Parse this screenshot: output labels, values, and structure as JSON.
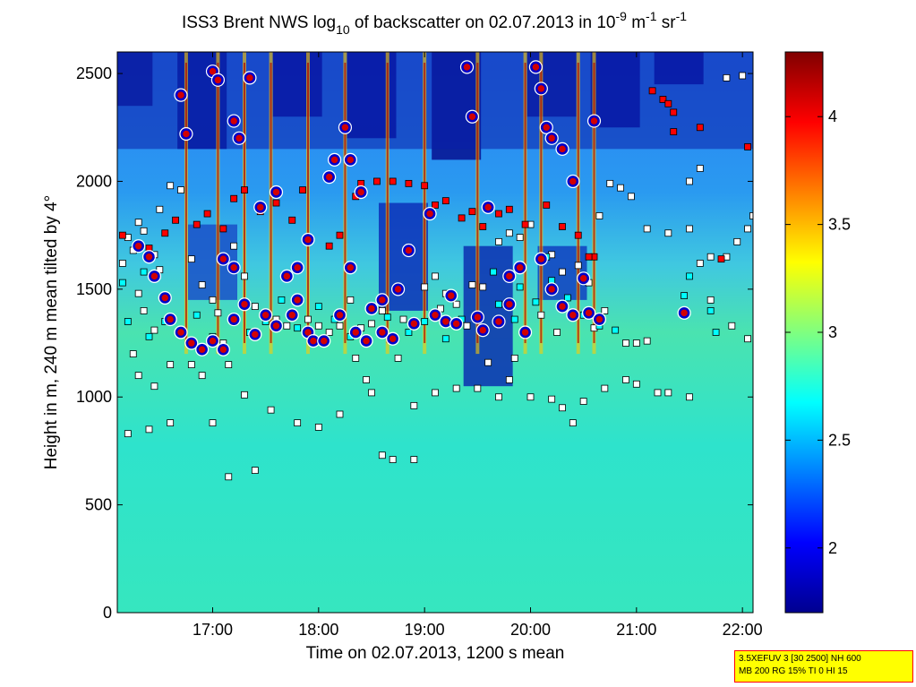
{
  "title": {
    "prefix": "ISS3 Brent NWS log",
    "sub": "10",
    "middle": " of backscatter on 02.07.2013 in 10",
    "sup1": "-9",
    "unit1": " m",
    "sup2": "-1",
    "unit2": " sr",
    "sup3": "-1"
  },
  "xlabel": "Time on 02.07.2013, 1200 s mean",
  "ylabel": "Height in m, 240 m mean tilted by 4°",
  "info_box": {
    "line1": "3.5XEFUV 3 [30 2500] NH 600",
    "line2": "MB 200 RG 15% TI 0 HI 15"
  },
  "colors": {
    "background_low": "#2fe3c8",
    "background_mid": "#33c4e6",
    "high_backscatter": "#8c0000",
    "cloud_marker_fill": "#ff0000",
    "cloud_marker_edge": "#000000",
    "layer_marker_fill": "#ffffff",
    "aerosol_marker_fill": "#00ffff",
    "precip_marker_fill": "#d20000",
    "precip_marker_edge": "#0000cc",
    "info_box_bg": "#ffff00",
    "info_box_border": "#ff0000"
  },
  "chart_data": {
    "type": "heatmap",
    "colormap": "jet",
    "x_range_hours": [
      16.1,
      22.1
    ],
    "y_range_m": [
      0,
      2600
    ],
    "x_ticks": [
      "17:00",
      "18:00",
      "19:00",
      "20:00",
      "21:00",
      "22:00"
    ],
    "x_tick_hours": [
      17,
      18,
      19,
      20,
      21,
      22
    ],
    "y_ticks": [
      0,
      500,
      1000,
      1500,
      2000,
      2500
    ],
    "colorbar": {
      "range": [
        1.7,
        4.3
      ],
      "ticks": [
        "2",
        "2.5",
        "3",
        "3.5",
        "4"
      ],
      "tick_values": [
        2,
        2.5,
        3,
        3.5,
        4
      ]
    },
    "grid": false,
    "series": [
      {
        "marker": "square-white",
        "points": [
          [
            16.15,
            1620
          ],
          [
            16.2,
            1740
          ],
          [
            16.25,
            1680
          ],
          [
            16.3,
            1810
          ],
          [
            16.35,
            1770
          ],
          [
            16.45,
            1660
          ],
          [
            16.5,
            1590
          ],
          [
            16.6,
            1980
          ],
          [
            16.7,
            1960
          ],
          [
            16.8,
            1640
          ],
          [
            16.9,
            1520
          ],
          [
            17.0,
            1450
          ],
          [
            17.05,
            1390
          ],
          [
            17.1,
            1250
          ],
          [
            17.2,
            1700
          ],
          [
            17.3,
            1560
          ],
          [
            17.4,
            1420
          ],
          [
            17.5,
            1380
          ],
          [
            17.6,
            1360
          ],
          [
            17.7,
            1330
          ],
          [
            17.9,
            1360
          ],
          [
            18.0,
            1330
          ],
          [
            18.2,
            1330
          ],
          [
            18.3,
            1450
          ],
          [
            18.4,
            1320
          ],
          [
            18.5,
            1340
          ],
          [
            18.6,
            1400
          ],
          [
            18.8,
            1360
          ],
          [
            19.0,
            1510
          ],
          [
            19.1,
            1560
          ],
          [
            19.2,
            1480
          ],
          [
            19.3,
            1430
          ],
          [
            19.45,
            1520
          ],
          [
            19.55,
            1510
          ],
          [
            19.7,
            1720
          ],
          [
            19.8,
            1760
          ],
          [
            19.9,
            1740
          ],
          [
            20.0,
            1800
          ],
          [
            20.2,
            1660
          ],
          [
            20.3,
            1580
          ],
          [
            20.45,
            1610
          ],
          [
            20.55,
            1530
          ],
          [
            20.65,
            1840
          ],
          [
            20.75,
            1990
          ],
          [
            20.85,
            1970
          ],
          [
            20.95,
            1930
          ],
          [
            21.1,
            1780
          ],
          [
            21.3,
            1760
          ],
          [
            21.5,
            1780
          ],
          [
            21.6,
            1620
          ],
          [
            21.7,
            1650
          ],
          [
            21.85,
            1650
          ],
          [
            21.95,
            1720
          ],
          [
            22.05,
            1780
          ],
          [
            22.1,
            1840
          ],
          [
            20.7,
            1400
          ],
          [
            20.9,
            1250
          ],
          [
            21.0,
            1250
          ],
          [
            21.1,
            1260
          ],
          [
            21.5,
            2000
          ],
          [
            21.6,
            2060
          ],
          [
            21.85,
            2480
          ],
          [
            22.0,
            2490
          ],
          [
            16.5,
            1870
          ],
          [
            17.0,
            880
          ],
          [
            17.4,
            660
          ],
          [
            17.15,
            630
          ],
          [
            16.2,
            830
          ],
          [
            16.4,
            850
          ],
          [
            16.6,
            880
          ],
          [
            18.6,
            730
          ],
          [
            18.7,
            710
          ],
          [
            18.9,
            710
          ],
          [
            17.8,
            880
          ],
          [
            18.0,
            860
          ],
          [
            18.2,
            920
          ],
          [
            18.5,
            1020
          ],
          [
            18.9,
            960
          ],
          [
            19.1,
            1020
          ],
          [
            19.3,
            1040
          ],
          [
            19.5,
            1040
          ],
          [
            19.7,
            1000
          ],
          [
            20.0,
            1000
          ],
          [
            20.3,
            950
          ],
          [
            20.5,
            980
          ],
          [
            20.7,
            1040
          ],
          [
            20.9,
            1080
          ],
          [
            21.0,
            1060
          ],
          [
            21.3,
            1020
          ],
          [
            21.2,
            1020
          ],
          [
            21.5,
            1000
          ],
          [
            20.4,
            880
          ],
          [
            20.2,
            990
          ],
          [
            19.8,
            1080
          ],
          [
            16.3,
            1480
          ],
          [
            16.35,
            1400
          ],
          [
            16.45,
            1310
          ],
          [
            16.25,
            1200
          ],
          [
            16.3,
            1100
          ],
          [
            16.45,
            1050
          ],
          [
            16.6,
            1150
          ],
          [
            16.8,
            1150
          ],
          [
            16.9,
            1100
          ],
          [
            17.15,
            1150
          ],
          [
            17.3,
            1010
          ],
          [
            17.55,
            940
          ],
          [
            18.1,
            1300
          ],
          [
            18.35,
            1180
          ],
          [
            18.45,
            1080
          ],
          [
            18.75,
            1180
          ],
          [
            19.15,
            1410
          ],
          [
            19.4,
            1330
          ],
          [
            19.6,
            1160
          ],
          [
            19.85,
            1180
          ],
          [
            20.1,
            1380
          ],
          [
            20.25,
            1300
          ],
          [
            20.6,
            1320
          ],
          [
            22.05,
            1270
          ],
          [
            21.9,
            1330
          ],
          [
            21.7,
            1450
          ]
        ]
      },
      {
        "marker": "square-cyan",
        "points": [
          [
            16.2,
            1350
          ],
          [
            16.4,
            1280
          ],
          [
            16.55,
            1350
          ],
          [
            16.7,
            1300
          ],
          [
            16.85,
            1380
          ],
          [
            17.0,
            1280
          ],
          [
            17.2,
            1350
          ],
          [
            17.35,
            1300
          ],
          [
            17.5,
            1350
          ],
          [
            17.65,
            1450
          ],
          [
            17.8,
            1320
          ],
          [
            18.0,
            1420
          ],
          [
            18.15,
            1360
          ],
          [
            18.3,
            1280
          ],
          [
            18.5,
            1420
          ],
          [
            18.65,
            1370
          ],
          [
            18.85,
            1300
          ],
          [
            19.0,
            1350
          ],
          [
            19.2,
            1270
          ],
          [
            19.35,
            1360
          ],
          [
            19.55,
            1300
          ],
          [
            19.7,
            1430
          ],
          [
            19.85,
            1360
          ],
          [
            20.05,
            1440
          ],
          [
            20.2,
            1540
          ],
          [
            20.35,
            1460
          ],
          [
            20.5,
            1380
          ],
          [
            20.65,
            1330
          ],
          [
            20.8,
            1310
          ],
          [
            21.5,
            1560
          ],
          [
            21.45,
            1470
          ],
          [
            21.7,
            1400
          ],
          [
            21.75,
            1300
          ],
          [
            19.65,
            1580
          ],
          [
            19.9,
            1510
          ],
          [
            20.15,
            1650
          ],
          [
            16.15,
            1530
          ],
          [
            16.35,
            1580
          ]
        ]
      },
      {
        "marker": "square-red",
        "points": [
          [
            16.15,
            1750
          ],
          [
            16.4,
            1690
          ],
          [
            16.55,
            1760
          ],
          [
            16.65,
            1820
          ],
          [
            16.85,
            1800
          ],
          [
            16.95,
            1850
          ],
          [
            17.1,
            1780
          ],
          [
            17.2,
            1920
          ],
          [
            17.3,
            1960
          ],
          [
            17.45,
            1860
          ],
          [
            17.6,
            1900
          ],
          [
            17.75,
            1820
          ],
          [
            17.85,
            1960
          ],
          [
            18.1,
            1700
          ],
          [
            18.2,
            1750
          ],
          [
            18.35,
            1930
          ],
          [
            18.4,
            1990
          ],
          [
            18.55,
            2000
          ],
          [
            18.7,
            2000
          ],
          [
            18.85,
            1990
          ],
          [
            19.0,
            1980
          ],
          [
            19.1,
            1890
          ],
          [
            19.2,
            1910
          ],
          [
            19.35,
            1830
          ],
          [
            19.45,
            1860
          ],
          [
            19.55,
            1790
          ],
          [
            19.7,
            1850
          ],
          [
            19.8,
            1870
          ],
          [
            19.95,
            1800
          ],
          [
            20.15,
            1890
          ],
          [
            20.3,
            1790
          ],
          [
            20.45,
            1750
          ],
          [
            20.6,
            1650
          ],
          [
            21.15,
            2420
          ],
          [
            21.25,
            2380
          ],
          [
            21.3,
            2360
          ],
          [
            21.35,
            2320
          ],
          [
            21.6,
            2250
          ],
          [
            21.8,
            1640
          ],
          [
            22.05,
            2160
          ],
          [
            21.35,
            2230
          ],
          [
            20.55,
            1650
          ]
        ]
      },
      {
        "marker": "circle-precip",
        "points": [
          [
            16.7,
            2400
          ],
          [
            16.75,
            2220
          ],
          [
            17.0,
            2510
          ],
          [
            17.05,
            2470
          ],
          [
            17.2,
            2280
          ],
          [
            17.25,
            2200
          ],
          [
            17.35,
            2480
          ],
          [
            17.1,
            1640
          ],
          [
            17.2,
            1600
          ],
          [
            17.45,
            1880
          ],
          [
            17.6,
            1950
          ],
          [
            17.8,
            1600
          ],
          [
            17.9,
            1730
          ],
          [
            18.1,
            2020
          ],
          [
            18.15,
            2100
          ],
          [
            18.25,
            2250
          ],
          [
            18.3,
            2100
          ],
          [
            18.4,
            1950
          ],
          [
            18.3,
            1600
          ],
          [
            18.5,
            1410
          ],
          [
            18.6,
            1450
          ],
          [
            18.75,
            1500
          ],
          [
            18.85,
            1680
          ],
          [
            19.05,
            1850
          ],
          [
            19.25,
            1470
          ],
          [
            19.4,
            2530
          ],
          [
            19.45,
            2300
          ],
          [
            19.6,
            1880
          ],
          [
            19.7,
            1350
          ],
          [
            19.8,
            1430
          ],
          [
            19.95,
            1300
          ],
          [
            20.05,
            2530
          ],
          [
            20.1,
            2430
          ],
          [
            20.15,
            2250
          ],
          [
            20.2,
            2200
          ],
          [
            20.3,
            2150
          ],
          [
            20.4,
            2000
          ],
          [
            20.1,
            1640
          ],
          [
            20.2,
            1500
          ],
          [
            20.3,
            1420
          ],
          [
            20.4,
            1380
          ],
          [
            20.5,
            1550
          ],
          [
            20.6,
            2280
          ],
          [
            21.45,
            1390
          ],
          [
            17.7,
            1560
          ],
          [
            17.8,
            1450
          ],
          [
            17.9,
            1300
          ],
          [
            17.95,
            1260
          ],
          [
            18.05,
            1260
          ],
          [
            16.3,
            1700
          ],
          [
            16.4,
            1650
          ],
          [
            16.45,
            1560
          ],
          [
            16.55,
            1460
          ],
          [
            16.6,
            1360
          ],
          [
            16.7,
            1300
          ],
          [
            16.8,
            1250
          ],
          [
            16.9,
            1220
          ],
          [
            17.0,
            1260
          ],
          [
            17.1,
            1220
          ],
          [
            17.2,
            1360
          ],
          [
            17.3,
            1430
          ],
          [
            17.4,
            1290
          ],
          [
            17.5,
            1380
          ],
          [
            17.6,
            1330
          ],
          [
            17.75,
            1380
          ],
          [
            18.2,
            1380
          ],
          [
            18.35,
            1300
          ],
          [
            18.45,
            1260
          ],
          [
            18.6,
            1300
          ],
          [
            18.7,
            1270
          ],
          [
            18.9,
            1340
          ],
          [
            19.1,
            1380
          ],
          [
            19.2,
            1350
          ],
          [
            19.3,
            1340
          ],
          [
            19.5,
            1370
          ],
          [
            19.55,
            1310
          ],
          [
            19.8,
            1560
          ],
          [
            19.9,
            1600
          ],
          [
            20.55,
            1390
          ],
          [
            20.65,
            1360
          ]
        ]
      }
    ]
  }
}
